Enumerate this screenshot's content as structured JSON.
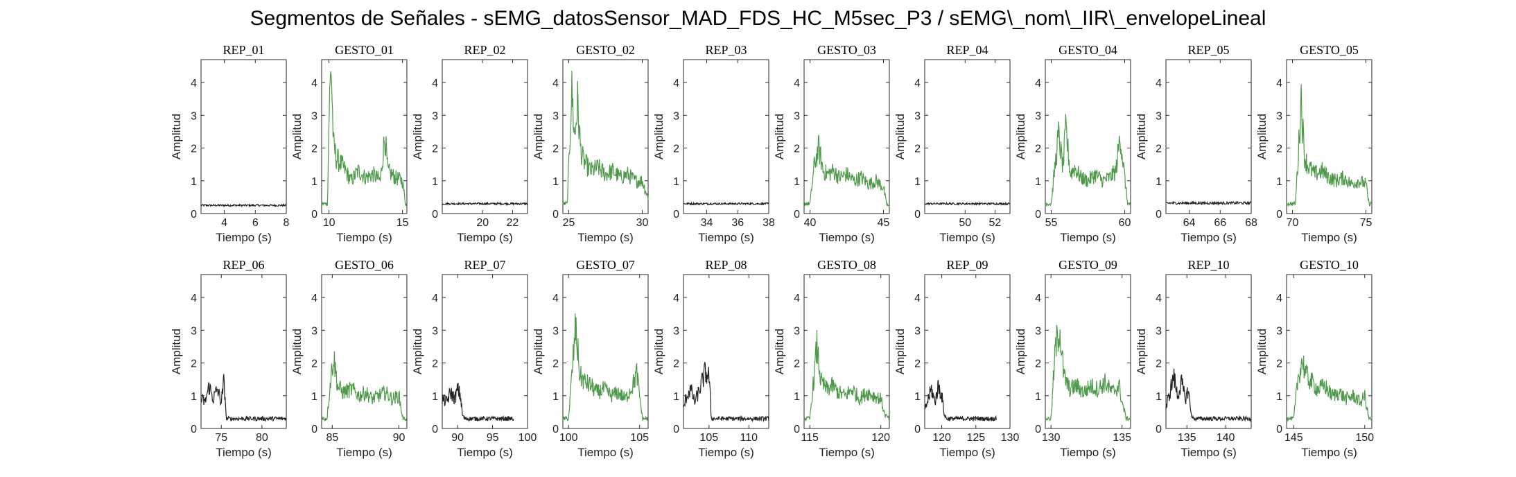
{
  "figure": {
    "title": "Segmentos de Señales - sEMG_datosSensor_MAD_FDS_HC_M5sec_P3 / sEMG\\_nom\\_IIR\\_envelopeLineal"
  },
  "colors": {
    "rep": "#222222",
    "gesto": "#4e9a4a",
    "axis": "#262626"
  },
  "chart_data": [
    {
      "type": "line",
      "title": "REP_01",
      "kind": "rep",
      "xlim": [
        2.5,
        8
      ],
      "xticks": [
        4,
        6,
        8
      ],
      "ylim": [
        0,
        4.7
      ],
      "yticks": [
        0,
        1,
        2,
        3,
        4
      ],
      "xlabel": "Tiempo (s)",
      "ylabel": "Amplitud",
      "series": [
        {
          "baseline": 0.25,
          "noise": 0.03
        }
      ]
    },
    {
      "type": "line",
      "title": "GESTO_01",
      "kind": "gesto",
      "xlim": [
        9.5,
        15.3
      ],
      "xticks": [
        10,
        15
      ],
      "ylim": [
        0,
        4.7
      ],
      "yticks": [
        0,
        1,
        2,
        3,
        4
      ],
      "xlabel": "Tiempo (s)",
      "ylabel": "Amplitud",
      "series": [
        {
          "x": [
            9.5,
            9.9,
            10.0,
            10.15,
            10.3,
            10.5,
            11.0,
            11.5,
            12.0,
            12.5,
            13.0,
            13.5,
            13.8,
            14.0,
            14.5,
            15.0,
            15.2,
            15.3
          ],
          "y": [
            0.3,
            0.3,
            3.0,
            4.6,
            2.1,
            1.7,
            1.4,
            1.0,
            1.3,
            1.1,
            1.2,
            1.0,
            2.4,
            1.3,
            1.1,
            1.0,
            0.3,
            0.3
          ]
        }
      ]
    },
    {
      "type": "line",
      "title": "REP_02",
      "kind": "rep",
      "xlim": [
        17.3,
        23
      ],
      "xticks": [
        20,
        22
      ],
      "ylim": [
        0,
        4.7
      ],
      "yticks": [
        0,
        1,
        2,
        3,
        4
      ],
      "xlabel": "Tiempo (s)",
      "ylabel": "Amplitud",
      "series": [
        {
          "baseline": 0.3,
          "noise": 0.03
        }
      ]
    },
    {
      "type": "line",
      "title": "GESTO_02",
      "kind": "gesto",
      "xlim": [
        24.6,
        30.4
      ],
      "xticks": [
        25,
        30
      ],
      "ylim": [
        0,
        4.7
      ],
      "yticks": [
        0,
        1,
        2,
        3,
        4
      ],
      "xlabel": "Tiempo (s)",
      "ylabel": "Amplitud",
      "series": [
        {
          "x": [
            24.6,
            24.9,
            25.05,
            25.2,
            25.4,
            25.6,
            25.8,
            26.0,
            26.5,
            27.0,
            27.5,
            28.0,
            28.5,
            29.0,
            29.5,
            30.0,
            30.3,
            30.4
          ],
          "y": [
            0.3,
            0.3,
            2.0,
            3.8,
            2.3,
            3.4,
            2.0,
            1.6,
            1.3,
            1.4,
            1.2,
            1.3,
            1.1,
            1.2,
            1.0,
            1.0,
            0.6,
            0.5
          ]
        }
      ]
    },
    {
      "type": "line",
      "title": "REP_03",
      "kind": "rep",
      "xlim": [
        32.5,
        38
      ],
      "xticks": [
        34,
        36,
        38
      ],
      "ylim": [
        0,
        4.7
      ],
      "yticks": [
        0,
        1,
        2,
        3,
        4
      ],
      "xlabel": "Tiempo (s)",
      "ylabel": "Amplitud",
      "series": [
        {
          "baseline": 0.3,
          "noise": 0.03
        }
      ]
    },
    {
      "type": "line",
      "title": "GESTO_03",
      "kind": "gesto",
      "xlim": [
        39.6,
        45.4
      ],
      "xticks": [
        40,
        45
      ],
      "ylim": [
        0,
        4.7
      ],
      "yticks": [
        0,
        1,
        2,
        3,
        4
      ],
      "xlabel": "Tiempo (s)",
      "ylabel": "Amplitud",
      "series": [
        {
          "x": [
            39.6,
            40.0,
            40.3,
            40.6,
            40.9,
            41.2,
            41.6,
            42.0,
            42.5,
            43.0,
            43.5,
            44.0,
            44.5,
            45.0,
            45.2,
            45.4
          ],
          "y": [
            0.3,
            0.3,
            1.5,
            2.0,
            1.3,
            1.2,
            1.3,
            1.1,
            1.2,
            1.0,
            1.1,
            0.9,
            1.0,
            0.8,
            0.3,
            0.2
          ]
        }
      ]
    },
    {
      "type": "line",
      "title": "REP_04",
      "kind": "rep",
      "xlim": [
        47.3,
        53
      ],
      "xticks": [
        50,
        52
      ],
      "ylim": [
        0,
        4.7
      ],
      "yticks": [
        0,
        1,
        2,
        3,
        4
      ],
      "xlabel": "Tiempo (s)",
      "ylabel": "Amplitud",
      "series": [
        {
          "baseline": 0.3,
          "noise": 0.03
        }
      ]
    },
    {
      "type": "line",
      "title": "GESTO_04",
      "kind": "gesto",
      "xlim": [
        54.6,
        60.4
      ],
      "xticks": [
        55,
        60
      ],
      "ylim": [
        0,
        4.7
      ],
      "yticks": [
        0,
        1,
        2,
        3,
        4
      ],
      "xlabel": "Tiempo (s)",
      "ylabel": "Amplitud",
      "series": [
        {
          "x": [
            54.6,
            55.0,
            55.2,
            55.5,
            55.8,
            56.0,
            56.3,
            56.6,
            57.0,
            57.5,
            58.0,
            58.5,
            59.0,
            59.4,
            59.7,
            59.9,
            60.2,
            60.4
          ],
          "y": [
            0.3,
            0.3,
            1.2,
            2.4,
            1.4,
            2.6,
            1.2,
            1.4,
            1.1,
            1.0,
            1.2,
            1.0,
            1.1,
            1.3,
            2.4,
            1.5,
            0.3,
            0.3
          ]
        }
      ]
    },
    {
      "type": "line",
      "title": "REP_05",
      "kind": "rep",
      "xlim": [
        62.5,
        68
      ],
      "xticks": [
        64,
        66,
        68
      ],
      "ylim": [
        0,
        4.7
      ],
      "yticks": [
        0,
        1,
        2,
        3,
        4
      ],
      "xlabel": "Tiempo (s)",
      "ylabel": "Amplitud",
      "series": [
        {
          "baseline": 0.32,
          "noise": 0.04
        }
      ]
    },
    {
      "type": "line",
      "title": "GESTO_05",
      "kind": "gesto",
      "xlim": [
        69.6,
        75.4
      ],
      "xticks": [
        70,
        75
      ],
      "ylim": [
        0,
        4.7
      ],
      "yticks": [
        0,
        1,
        2,
        3,
        4
      ],
      "xlabel": "Tiempo (s)",
      "ylabel": "Amplitud",
      "series": [
        {
          "x": [
            69.6,
            70.2,
            70.4,
            70.6,
            70.8,
            71.0,
            71.5,
            72.0,
            72.5,
            73.0,
            73.5,
            74.0,
            74.5,
            75.0,
            75.2,
            75.4
          ],
          "y": [
            0.3,
            0.3,
            1.8,
            3.6,
            1.8,
            1.5,
            1.2,
            1.3,
            1.1,
            1.0,
            1.1,
            0.9,
            1.0,
            0.9,
            0.3,
            0.3
          ]
        }
      ]
    },
    {
      "type": "line",
      "title": "REP_06",
      "kind": "rep",
      "xlim": [
        72.5,
        83
      ],
      "xticks": [
        75,
        80
      ],
      "ylim": [
        0,
        4.7
      ],
      "yticks": [
        0,
        1,
        2,
        3,
        4
      ],
      "xlabel": "Tiempo (s)",
      "ylabel": "Amplitud",
      "series": [
        {
          "x": [
            72.5,
            73.0,
            73.5,
            74.0,
            74.5,
            75.0,
            75.3,
            75.5,
            75.6,
            76,
            78,
            80,
            82,
            83
          ],
          "y": [
            0.9,
            0.8,
            1.3,
            0.9,
            1.2,
            0.8,
            1.4,
            0.9,
            0.3,
            0.3,
            0.3,
            0.3,
            0.3,
            0.3
          ]
        }
      ]
    },
    {
      "type": "line",
      "title": "GESTO_06",
      "kind": "gesto",
      "xlim": [
        84.2,
        90.6
      ],
      "xticks": [
        85,
        90
      ],
      "ylim": [
        0,
        4.7
      ],
      "yticks": [
        0,
        1,
        2,
        3,
        4
      ],
      "xlabel": "Tiempo (s)",
      "ylabel": "Amplitud",
      "series": [
        {
          "x": [
            84.2,
            84.6,
            84.9,
            85.1,
            85.4,
            85.8,
            86.5,
            87.0,
            87.5,
            88.0,
            88.5,
            89.0,
            89.5,
            90.0,
            90.3,
            90.6
          ],
          "y": [
            0.3,
            0.3,
            1.6,
            2.2,
            1.3,
            1.1,
            1.2,
            1.0,
            1.1,
            0.9,
            1.0,
            1.1,
            0.9,
            1.0,
            0.3,
            0.3
          ]
        }
      ]
    },
    {
      "type": "line",
      "title": "REP_07",
      "kind": "rep",
      "xlim": [
        87.8,
        100
      ],
      "xticks": [
        90,
        95,
        100
      ],
      "ylim": [
        0,
        4.7
      ],
      "yticks": [
        0,
        1,
        2,
        3,
        4
      ],
      "xlabel": "Tiempo (s)",
      "ylabel": "Amplitud",
      "series": [
        {
          "x": [
            87.8,
            88.4,
            89.0,
            89.6,
            90.0,
            90.4,
            90.7,
            91.0,
            93,
            95,
            97,
            98
          ],
          "y": [
            0.9,
            0.8,
            1.1,
            0.9,
            1.2,
            1.0,
            0.4,
            0.3,
            0.3,
            0.3,
            0.3,
            0.3
          ]
        }
      ]
    },
    {
      "type": "line",
      "title": "GESTO_07",
      "kind": "gesto",
      "xlim": [
        99.6,
        105.6
      ],
      "xticks": [
        100,
        105
      ],
      "ylim": [
        0,
        4.7
      ],
      "yticks": [
        0,
        1,
        2,
        3,
        4
      ],
      "xlabel": "Tiempo (s)",
      "ylabel": "Amplitud",
      "series": [
        {
          "x": [
            99.6,
            100.0,
            100.3,
            100.5,
            100.8,
            101.2,
            101.6,
            102.0,
            102.5,
            103.0,
            103.5,
            104.0,
            104.5,
            104.8,
            105.2,
            105.6
          ],
          "y": [
            0.3,
            0.3,
            2.0,
            3.1,
            1.6,
            1.4,
            1.3,
            1.1,
            1.2,
            1.0,
            1.1,
            0.9,
            1.3,
            1.7,
            0.3,
            0.3
          ]
        }
      ]
    },
    {
      "type": "line",
      "title": "REP_08",
      "kind": "rep",
      "xlim": [
        101.8,
        112.5
      ],
      "xticks": [
        105,
        110
      ],
      "ylim": [
        0,
        4.7
      ],
      "yticks": [
        0,
        1,
        2,
        3,
        4
      ],
      "xlabel": "Tiempo (s)",
      "ylabel": "Amplitud",
      "series": [
        {
          "x": [
            101.8,
            102.2,
            102.7,
            103.2,
            103.7,
            104.1,
            104.5,
            105.0,
            105.3,
            105.5,
            107,
            109,
            111,
            112.5
          ],
          "y": [
            0.6,
            1.0,
            1.2,
            0.8,
            1.1,
            1.4,
            1.7,
            1.6,
            0.3,
            0.3,
            0.3,
            0.3,
            0.3,
            0.3
          ]
        }
      ]
    },
    {
      "type": "line",
      "title": "GESTO_08",
      "kind": "gesto",
      "xlim": [
        114.6,
        120.6
      ],
      "xticks": [
        115,
        120
      ],
      "ylim": [
        0,
        4.7
      ],
      "yticks": [
        0,
        1,
        2,
        3,
        4
      ],
      "xlabel": "Tiempo (s)",
      "ylabel": "Amplitud",
      "series": [
        {
          "x": [
            114.6,
            115.0,
            115.3,
            115.5,
            115.8,
            116.2,
            116.6,
            117.0,
            117.5,
            118.0,
            118.5,
            119.0,
            119.5,
            120.0,
            120.3,
            120.6
          ],
          "y": [
            0.3,
            0.3,
            1.6,
            2.5,
            1.4,
            1.2,
            1.3,
            1.1,
            1.0,
            1.2,
            0.9,
            1.1,
            1.0,
            0.9,
            0.4,
            0.3
          ]
        }
      ]
    },
    {
      "type": "line",
      "title": "REP_09",
      "kind": "rep",
      "xlim": [
        117.5,
        130
      ],
      "xticks": [
        120,
        125,
        130
      ],
      "ylim": [
        0,
        4.7
      ],
      "yticks": [
        0,
        1,
        2,
        3,
        4
      ],
      "xlabel": "Tiempo (s)",
      "ylabel": "Amplitud",
      "series": [
        {
          "x": [
            117.5,
            118.0,
            118.5,
            119.0,
            119.5,
            120.0,
            120.4,
            120.7,
            121,
            123,
            125,
            127,
            128
          ],
          "y": [
            0.5,
            0.9,
            1.2,
            0.8,
            1.3,
            1.0,
            0.4,
            0.3,
            0.3,
            0.3,
            0.3,
            0.3,
            0.3
          ]
        }
      ]
    },
    {
      "type": "line",
      "title": "GESTO_09",
      "kind": "gesto",
      "xlim": [
        129.6,
        135.6
      ],
      "xticks": [
        130,
        135
      ],
      "ylim": [
        0,
        4.7
      ],
      "yticks": [
        0,
        1,
        2,
        3,
        4
      ],
      "xlabel": "Tiempo (s)",
      "ylabel": "Amplitud",
      "series": [
        {
          "x": [
            129.6,
            130.0,
            130.3,
            130.6,
            130.9,
            131.3,
            131.8,
            132.3,
            132.8,
            133.3,
            133.8,
            134.3,
            134.8,
            135.0,
            135.3,
            135.6
          ],
          "y": [
            0.3,
            0.3,
            2.4,
            3.1,
            1.6,
            1.2,
            1.3,
            1.1,
            1.3,
            1.2,
            1.4,
            1.1,
            1.3,
            0.8,
            0.3,
            0.3
          ]
        }
      ]
    },
    {
      "type": "line",
      "title": "REP_10",
      "kind": "rep",
      "xlim": [
        132.3,
        143.3
      ],
      "xticks": [
        135,
        140
      ],
      "ylim": [
        0,
        4.7
      ],
      "yticks": [
        0,
        1,
        2,
        3,
        4
      ],
      "xlabel": "Tiempo (s)",
      "ylabel": "Amplitud",
      "series": [
        {
          "x": [
            132.3,
            132.8,
            133.3,
            133.8,
            134.3,
            134.8,
            135.2,
            135.5,
            135.8,
            137,
            139,
            141,
            143.3
          ],
          "y": [
            0.6,
            1.1,
            1.6,
            1.0,
            1.4,
            0.9,
            1.2,
            0.5,
            0.3,
            0.3,
            0.3,
            0.3,
            0.3
          ]
        }
      ]
    },
    {
      "type": "line",
      "title": "GESTO_10",
      "kind": "gesto",
      "xlim": [
        144.5,
        150.5
      ],
      "xticks": [
        145,
        150
      ],
      "ylim": [
        0,
        4.7
      ],
      "yticks": [
        0,
        1,
        2,
        3,
        4
      ],
      "xlabel": "Tiempo (s)",
      "ylabel": "Amplitud",
      "series": [
        {
          "x": [
            144.5,
            145.0,
            145.3,
            145.6,
            145.9,
            146.3,
            146.7,
            147.2,
            147.7,
            148.2,
            148.7,
            149.2,
            149.7,
            150.0,
            150.3,
            150.5
          ],
          "y": [
            0.3,
            0.3,
            1.5,
            2.1,
            1.6,
            1.4,
            1.2,
            1.3,
            1.0,
            1.1,
            0.9,
            1.0,
            0.8,
            1.0,
            0.3,
            0.3
          ]
        }
      ]
    }
  ]
}
